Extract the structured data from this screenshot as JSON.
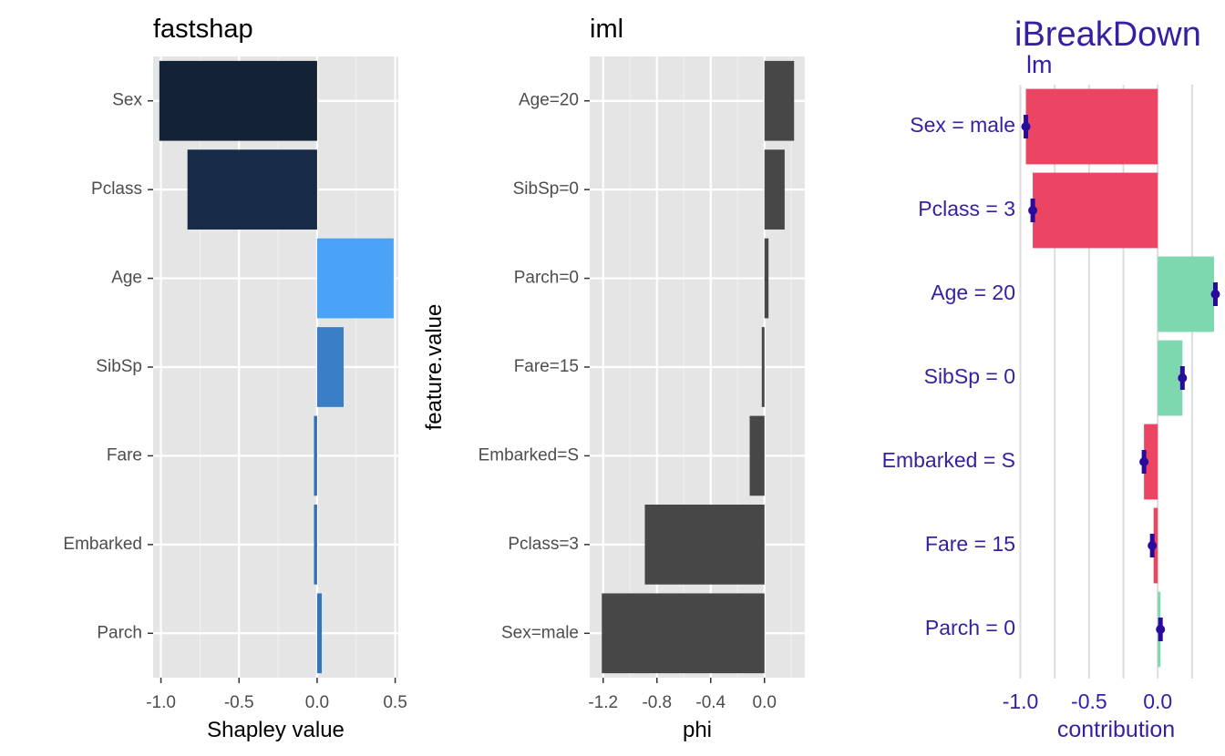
{
  "chart_data": [
    {
      "type": "bar",
      "orientation": "horizontal",
      "title": "fastshap",
      "xlabel": "Shapley value",
      "ylabel": "",
      "xlim": [
        -1.05,
        0.52
      ],
      "x_ticks": [
        "-1.0",
        "-0.5",
        "0.0",
        "0.5"
      ],
      "x_tick_values": [
        -1.0,
        -0.5,
        0.0,
        0.5
      ],
      "categories": [
        "Sex",
        "Pclass",
        "Age",
        "SibSp",
        "Fare",
        "Embarked",
        "Parch"
      ],
      "values": [
        -1.01,
        -0.83,
        0.49,
        0.17,
        -0.02,
        -0.02,
        0.03
      ],
      "colors": [
        "#132235",
        "#172b47",
        "#4aa3f7",
        "#3a7fc6",
        "#3471b1",
        "#3471b1",
        "#3675b8"
      ],
      "grid": true,
      "panel_background": "#e5e5e5"
    },
    {
      "type": "bar",
      "orientation": "horizontal",
      "title": "iml",
      "xlabel": "phi",
      "ylabel": "feature.value",
      "xlim": [
        -1.3,
        0.3
      ],
      "x_ticks": [
        "-1.2",
        "-0.8",
        "-0.4",
        "0.0"
      ],
      "x_tick_values": [
        -1.2,
        -0.8,
        -0.4,
        0.0
      ],
      "categories": [
        "Age=20",
        "SibSp=0",
        "Parch=0",
        "Fare=15",
        "Embarked=S",
        "Pclass=3",
        "Sex=male"
      ],
      "values": [
        0.22,
        0.15,
        0.03,
        -0.02,
        -0.11,
        -0.89,
        -1.21
      ],
      "colors": [
        "#474747"
      ],
      "grid": true,
      "panel_background": "#e5e5e5"
    },
    {
      "type": "bar",
      "orientation": "horizontal",
      "title": "iBreakDown",
      "subtitle": "lm",
      "xlabel": "contribution",
      "ylabel": "",
      "xlim": [
        -1.03,
        0.45
      ],
      "x_ticks": [
        "-1.0",
        "-0.5",
        "0.0"
      ],
      "x_tick_values": [
        -1.0,
        -0.5,
        0.0
      ],
      "categories": [
        "Sex = male",
        "Pclass = 3",
        "Age = 20",
        "SibSp = 0",
        "Embarked = S",
        "Fare = 15",
        "Parch = 0"
      ],
      "values": [
        -0.96,
        -0.91,
        0.41,
        0.18,
        -0.1,
        -0.03,
        0.02
      ],
      "point_values": [
        -0.96,
        -0.91,
        0.42,
        0.18,
        -0.1,
        -0.04,
        0.02
      ],
      "positive_color": "#7dd8b0",
      "negative_color": "#eb4563",
      "point_color": "#2a0a9c",
      "text_color": "#371ea3",
      "grid": true
    }
  ]
}
